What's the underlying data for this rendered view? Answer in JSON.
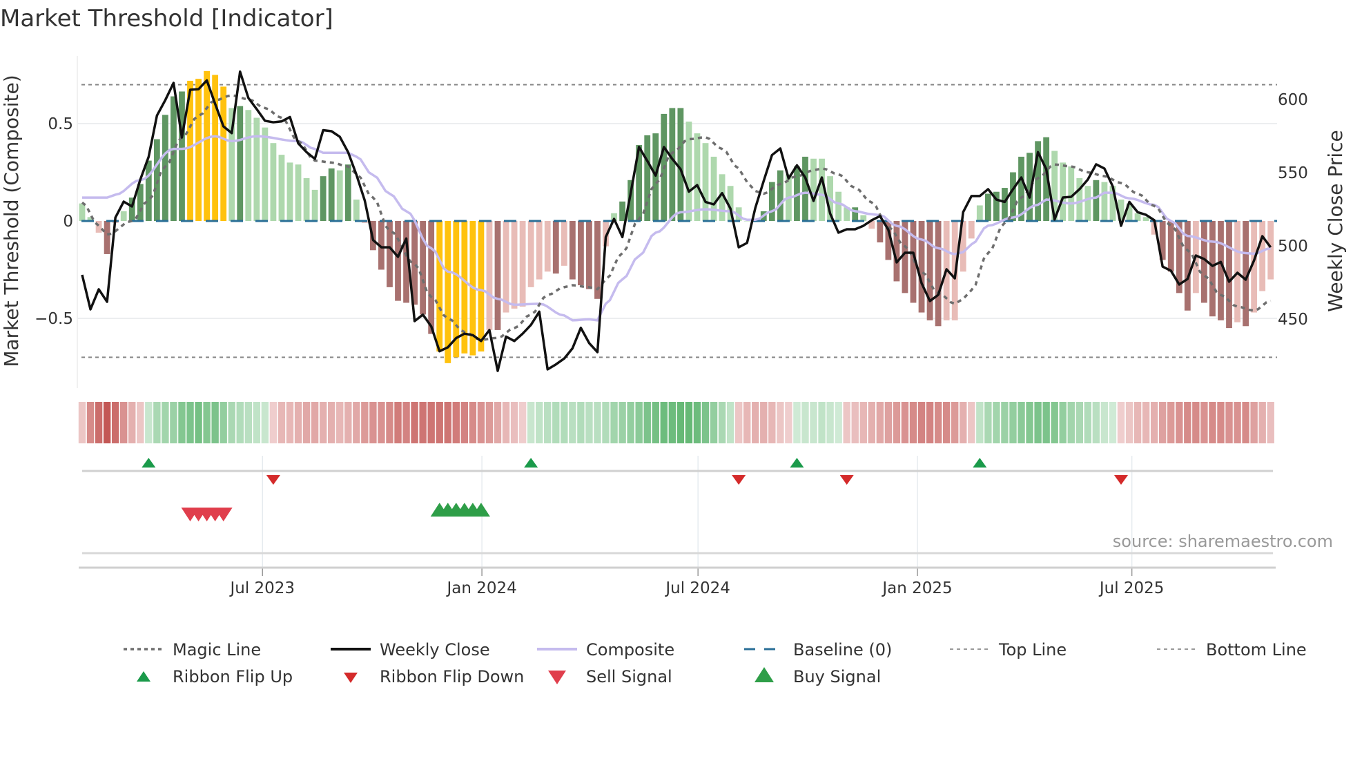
{
  "title": "Market Threshold [Indicator]",
  "source": "source: sharemaestro.com",
  "chart_data": {
    "type": "bar",
    "title": "Market Threshold [Indicator]",
    "ylabel": "Market Threshold (Composite)",
    "y2label": "Weekly Close Price",
    "ylim": [
      -0.85,
      0.85
    ],
    "y2lim": [
      401,
      633
    ],
    "y_ticks": [
      {
        "value": 0.5,
        "label": "0.5"
      },
      {
        "value": 0,
        "label": "0"
      },
      {
        "value": -0.5,
        "label": "−0.5"
      }
    ],
    "y2_ticks": [
      {
        "value": 600,
        "label": "600"
      },
      {
        "value": 550,
        "label": "550"
      },
      {
        "value": 500,
        "label": "500"
      },
      {
        "value": 450,
        "label": "450"
      }
    ],
    "x_ticks": [
      {
        "week": 21.7,
        "label": "Jul 2023"
      },
      {
        "week": 48.1,
        "label": "Jan 2024"
      },
      {
        "week": 74.1,
        "label": "Jul 2024"
      },
      {
        "week": 100.5,
        "label": "Jan 2025"
      },
      {
        "week": 126.3,
        "label": "Jul 2025"
      }
    ],
    "top_line": 0.7,
    "bottom_line": -0.7,
    "baseline": 0,
    "grid": true,
    "legend_placement": "bottom",
    "colors": {
      "strong_up": "#5f9662",
      "weak_up": "#aed8ad",
      "strong_down": "#a8716f",
      "weak_down": "#e8bcb7",
      "signal_bar": "#ffc20e",
      "weekly_close": "#111111",
      "composite": "#c5bbee",
      "magic": "#6e6e6e",
      "baseline": "#2a6f97",
      "ribbon_up": "#4fae62",
      "ribbon_down": "#c0504d",
      "flip_up": "#1a9a4a",
      "flip_down": "#d42a2a",
      "sell": "#e03e4c",
      "buy": "#2e9e48"
    },
    "bar_values": [
      0.09,
      0.02,
      -0.06,
      -0.17,
      -0.01,
      0.05,
      0.12,
      0.19,
      0.31,
      0.42,
      0.545,
      0.64,
      0.665,
      0.72,
      0.73,
      0.77,
      0.75,
      0.69,
      0.58,
      0.59,
      0.57,
      0.53,
      0.48,
      0.4,
      0.34,
      0.3,
      0.29,
      0.22,
      0.16,
      0.23,
      0.27,
      0.26,
      0.29,
      0.11,
      -0.01,
      -0.15,
      -0.25,
      -0.34,
      -0.41,
      -0.42,
      -0.43,
      -0.48,
      -0.58,
      -0.67,
      -0.73,
      -0.7,
      -0.68,
      -0.69,
      -0.67,
      -0.56,
      -0.56,
      -0.47,
      -0.45,
      -0.44,
      -0.34,
      -0.3,
      -0.26,
      -0.27,
      -0.23,
      -0.3,
      -0.33,
      -0.35,
      -0.4,
      -0.13,
      0.04,
      0.1,
      0.21,
      0.39,
      0.44,
      0.45,
      0.55,
      0.58,
      0.58,
      0.51,
      0.45,
      0.4,
      0.33,
      0.24,
      0.18,
      0.07,
      0.0,
      0.0,
      0.05,
      0.2,
      0.26,
      0.24,
      0.28,
      0.33,
      0.32,
      0.32,
      0.23,
      0.15,
      0.07,
      0.07,
      0.03,
      -0.04,
      -0.11,
      -0.2,
      -0.31,
      -0.37,
      -0.42,
      -0.47,
      -0.51,
      -0.54,
      -0.51,
      -0.51,
      -0.26,
      -0.09,
      0.08,
      0.14,
      0.15,
      0.17,
      0.25,
      0.33,
      0.35,
      0.41,
      0.43,
      0.36,
      0.3,
      0.28,
      0.22,
      0.18,
      0.21,
      0.2,
      0.18,
      0.11,
      0.09,
      0.04,
      0.02,
      -0.07,
      -0.2,
      -0.26,
      -0.37,
      -0.46,
      -0.37,
      -0.42,
      -0.49,
      -0.51,
      -0.55,
      -0.52,
      -0.54,
      -0.47,
      -0.36,
      -0.3
    ],
    "bar_class_codes": "ggrRrgGGGGGGGYYYYYgGgggggggggGGgGgrRRRRRRRRYYYYYYrRrrrrrrRrRRRRrgGGGGGGGGgggggggggGGGgGGgggggGgrRRRRRRRRrrrrgGGGGGGGGgggggGggggggrRRRRrRRRRrRrrr",
    "weekly_close": [
      480.2,
      456.6,
      470.3,
      461.8,
      519.3,
      530.2,
      526.9,
      545.3,
      560.8,
      589,
      599.5,
      611.3,
      574,
      606.6,
      607,
      613,
      597,
      581.6,
      577,
      619,
      601,
      593.4,
      585.4,
      584.4,
      585,
      588,
      570,
      564,
      559.4,
      579,
      578.3,
      574.5,
      564,
      548.6,
      531,
      504,
      499,
      499,
      492.5,
      505,
      448.6,
      453,
      445,
      428,
      430.7,
      437,
      440,
      439,
      435,
      442.5,
      414.6,
      438,
      435,
      440,
      446,
      455,
      415.6,
      419,
      423,
      430,
      444,
      433.6,
      427.4,
      506,
      518.4,
      506,
      536,
      567.5,
      558,
      548,
      567.5,
      559.4,
      552.4,
      537,
      541.5,
      530,
      528.3,
      536,
      525.5,
      499,
      502,
      526,
      544.3,
      562,
      566.5,
      546,
      555,
      546.7,
      530.7,
      546.7,
      522,
      509,
      511.3,
      511.3,
      513.7,
      517.5,
      520.3,
      511,
      488.7,
      495.3,
      495.3,
      474.5,
      462.3,
      466.5,
      484,
      477.8,
      523,
      534,
      534,
      538.7,
      531.6,
      530,
      538.7,
      546.7,
      533,
      564,
      552.4,
      518,
      533,
      533.5,
      538.7,
      545.3,
      555.7,
      552.8,
      540.6,
      513.7,
      530,
      523,
      521.2,
      517.5,
      485.8,
      483,
      473.6,
      477.4,
      493.4,
      491,
      486.3,
      489,
      475.5,
      481.6,
      476.9,
      490,
      506.6,
      499
    ],
    "composite_keypoints": [
      [
        0,
        0.12
      ],
      [
        3,
        0.12
      ],
      [
        4,
        0.135
      ],
      [
        7,
        0.21
      ],
      [
        11,
        0.37
      ],
      [
        12,
        0.37
      ],
      [
        16,
        0.435
      ],
      [
        18,
        0.41
      ],
      [
        21,
        0.435
      ],
      [
        26,
        0.41
      ],
      [
        28,
        0.37
      ],
      [
        29,
        0.35
      ],
      [
        32,
        0.35
      ],
      [
        33,
        0.33
      ],
      [
        35,
        0.236
      ],
      [
        37,
        0.14
      ],
      [
        39,
        0.05
      ],
      [
        42,
        -0.14
      ],
      [
        44,
        -0.26
      ],
      [
        48,
        -0.355
      ],
      [
        50,
        -0.4
      ],
      [
        52,
        -0.43
      ],
      [
        55,
        -0.425
      ],
      [
        58,
        -0.485
      ],
      [
        59,
        -0.51
      ],
      [
        61,
        -0.505
      ],
      [
        62,
        -0.51
      ],
      [
        63,
        -0.425
      ],
      [
        65,
        -0.3
      ],
      [
        67,
        -0.18
      ],
      [
        69,
        -0.06
      ],
      [
        72,
        0.045
      ],
      [
        75,
        0.06
      ],
      [
        78,
        0.05
      ],
      [
        80,
        0.006
      ],
      [
        81,
        0.006
      ],
      [
        83,
        0.05
      ],
      [
        85,
        0.12
      ],
      [
        87,
        0.145
      ],
      [
        89,
        0.135
      ],
      [
        91,
        0.09
      ],
      [
        93,
        0.05
      ],
      [
        95,
        0.035
      ],
      [
        96,
        0.03
      ],
      [
        98,
        -0.025
      ],
      [
        101,
        -0.095
      ],
      [
        103,
        -0.14
      ],
      [
        105,
        -0.17
      ],
      [
        106,
        -0.16
      ],
      [
        107,
        -0.12
      ],
      [
        109,
        -0.024
      ],
      [
        112,
        0.018
      ],
      [
        115,
        0.083
      ],
      [
        116,
        0.11
      ],
      [
        119,
        0.09
      ],
      [
        122,
        0.12
      ],
      [
        123,
        0.145
      ],
      [
        124,
        0.145
      ],
      [
        126,
        0.116
      ],
      [
        129,
        0.083
      ],
      [
        131,
        0.0
      ],
      [
        133,
        -0.077
      ],
      [
        136,
        -0.106
      ],
      [
        140,
        -0.165
      ],
      [
        141,
        -0.168
      ],
      [
        143,
        -0.14
      ]
    ],
    "magic_keypoints": [
      [
        0,
        0.095
      ],
      [
        2,
        -0.024
      ],
      [
        3,
        -0.07
      ],
      [
        6,
        0.0
      ],
      [
        8,
        0.106
      ],
      [
        10,
        0.28
      ],
      [
        12,
        0.43
      ],
      [
        14,
        0.54
      ],
      [
        16,
        0.62
      ],
      [
        18,
        0.645
      ],
      [
        20,
        0.625
      ],
      [
        22,
        0.58
      ],
      [
        24,
        0.53
      ],
      [
        26,
        0.41
      ],
      [
        28,
        0.31
      ],
      [
        30,
        0.3
      ],
      [
        32,
        0.28
      ],
      [
        33,
        0.24
      ],
      [
        35,
        0.12
      ],
      [
        37,
        -0.05
      ],
      [
        40,
        -0.22
      ],
      [
        42,
        -0.39
      ],
      [
        44,
        -0.5
      ],
      [
        46,
        -0.57
      ],
      [
        48,
        -0.61
      ],
      [
        50,
        -0.6
      ],
      [
        52,
        -0.55
      ],
      [
        54,
        -0.48
      ],
      [
        56,
        -0.38
      ],
      [
        58,
        -0.34
      ],
      [
        59,
        -0.33
      ],
      [
        61,
        -0.34
      ],
      [
        62,
        -0.35
      ],
      [
        63,
        -0.3
      ],
      [
        65,
        -0.165
      ],
      [
        67,
        0.01
      ],
      [
        69,
        0.19
      ],
      [
        71,
        0.35
      ],
      [
        73,
        0.42
      ],
      [
        75,
        0.43
      ],
      [
        77,
        0.37
      ],
      [
        79,
        0.27
      ],
      [
        80,
        0.2
      ],
      [
        81,
        0.154
      ],
      [
        82,
        0.14
      ],
      [
        84,
        0.19
      ],
      [
        86,
        0.23
      ],
      [
        88,
        0.26
      ],
      [
        89,
        0.27
      ],
      [
        91,
        0.24
      ],
      [
        93,
        0.17
      ],
      [
        95,
        0.095
      ],
      [
        97,
        -0.03
      ],
      [
        99,
        -0.13
      ],
      [
        101,
        -0.26
      ],
      [
        103,
        -0.37
      ],
      [
        105,
        -0.425
      ],
      [
        106,
        -0.4
      ],
      [
        107,
        -0.355
      ],
      [
        109,
        -0.165
      ],
      [
        111,
        -0.01
      ],
      [
        113,
        0.12
      ],
      [
        115,
        0.22
      ],
      [
        117,
        0.29
      ],
      [
        119,
        0.28
      ],
      [
        121,
        0.25
      ],
      [
        123,
        0.23
      ],
      [
        125,
        0.195
      ],
      [
        127,
        0.14
      ],
      [
        129,
        0.077
      ],
      [
        131,
        -0.024
      ],
      [
        133,
        -0.15
      ],
      [
        135,
        -0.28
      ],
      [
        137,
        -0.38
      ],
      [
        139,
        -0.44
      ],
      [
        141,
        -0.46
      ],
      [
        143,
        -0.41
      ]
    ],
    "ribbon_strength": [
      -0.2,
      -0.6,
      -0.8,
      -0.95,
      -0.8,
      -0.55,
      -0.35,
      -0.2,
      0.2,
      0.4,
      0.45,
      0.5,
      0.65,
      0.7,
      0.75,
      0.65,
      0.7,
      0.55,
      0.4,
      0.35,
      0.3,
      0.25,
      0.2,
      -0.15,
      -0.3,
      -0.3,
      -0.35,
      -0.4,
      -0.4,
      -0.35,
      -0.35,
      -0.3,
      -0.35,
      -0.4,
      -0.5,
      -0.55,
      -0.55,
      -0.6,
      -0.7,
      -0.65,
      -0.75,
      -0.75,
      -0.75,
      -0.75,
      -0.75,
      -0.7,
      -0.65,
      -0.6,
      -0.55,
      -0.5,
      -0.4,
      -0.3,
      -0.25,
      -0.15,
      0.2,
      0.25,
      0.3,
      0.35,
      0.35,
      0.3,
      0.35,
      0.3,
      0.3,
      0.35,
      0.45,
      0.5,
      0.55,
      0.6,
      0.7,
      0.75,
      0.8,
      0.8,
      0.85,
      0.85,
      0.8,
      0.7,
      0.55,
      0.4,
      0.25,
      -0.2,
      -0.3,
      -0.35,
      -0.35,
      -0.3,
      -0.2,
      -0.15,
      0.15,
      0.2,
      0.2,
      0.25,
      0.2,
      0.15,
      -0.2,
      -0.25,
      -0.3,
      -0.35,
      -0.4,
      -0.45,
      -0.5,
      -0.55,
      -0.6,
      -0.65,
      -0.65,
      -0.6,
      -0.6,
      -0.5,
      -0.35,
      -0.2,
      0.25,
      0.4,
      0.45,
      0.5,
      0.55,
      0.6,
      0.65,
      0.7,
      0.7,
      0.65,
      0.55,
      0.45,
      0.4,
      0.35,
      0.3,
      0.2,
      0.15,
      -0.15,
      -0.2,
      -0.3,
      -0.3,
      -0.35,
      -0.45,
      -0.5,
      -0.55,
      -0.6,
      -0.6,
      -0.55,
      -0.6,
      -0.6,
      -0.55,
      -0.55,
      -0.6,
      -0.45,
      -0.35,
      -0.25
    ],
    "ribbon_flip_up_weeks": [
      8,
      54,
      86,
      108
    ],
    "ribbon_flip_down_weeks": [
      23,
      79,
      92,
      125
    ],
    "sell_signal_weeks": [
      13,
      14,
      15,
      16,
      17
    ],
    "buy_signal_weeks": [
      43,
      44,
      45,
      46,
      47,
      48
    ],
    "legend": [
      {
        "label": "Magic Line",
        "kind": "dotted"
      },
      {
        "label": "Weekly Close",
        "kind": "close"
      },
      {
        "label": "Composite",
        "kind": "composite"
      },
      {
        "label": "Baseline (0)",
        "kind": "baseline"
      },
      {
        "label": "Top Line",
        "kind": "thin-dotted"
      },
      {
        "label": "Bottom Line",
        "kind": "thin-dotted"
      },
      {
        "label": "Ribbon Flip Up",
        "kind": "flip-up"
      },
      {
        "label": "Ribbon Flip Down",
        "kind": "flip-down"
      },
      {
        "label": "Sell Signal",
        "kind": "sell"
      },
      {
        "label": "Buy Signal",
        "kind": "buy"
      }
    ]
  }
}
